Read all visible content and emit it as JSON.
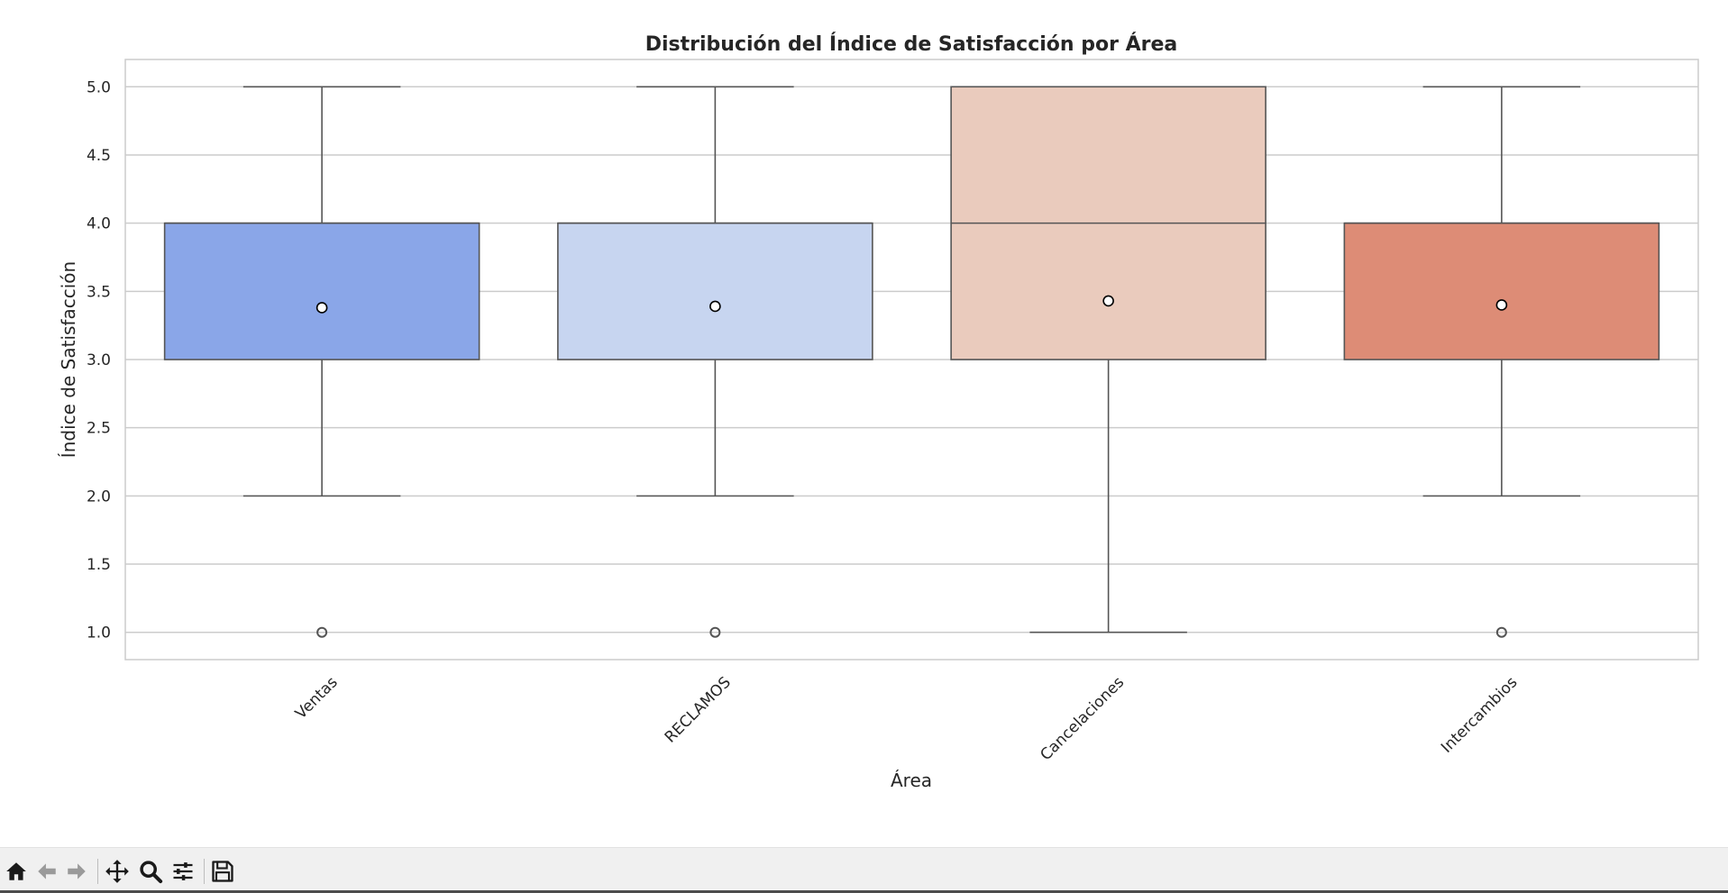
{
  "chart_data": {
    "type": "box",
    "title": "Distribución del Índice de Satisfacción por Área",
    "xlabel": "Área",
    "ylabel": "Índice de Satisfacción",
    "ylim": [
      0.8,
      5.2
    ],
    "yticks": [
      "1.0",
      "1.5",
      "2.0",
      "2.5",
      "3.0",
      "3.5",
      "4.0",
      "4.5",
      "5.0"
    ],
    "grid": "horizontal",
    "categories": [
      "Ventas",
      "RECLAMOS",
      "Cancelaciones",
      "Intercambios"
    ],
    "series": [
      {
        "category": "Ventas",
        "whisker_low": 2.0,
        "q1": 3.0,
        "median": 4.0,
        "q3": 4.0,
        "whisker_high": 5.0,
        "mean": 3.38,
        "outliers": [
          1.0
        ],
        "color": "#8aa6e8"
      },
      {
        "category": "RECLAMOS",
        "whisker_low": 2.0,
        "q1": 3.0,
        "median": 4.0,
        "q3": 4.0,
        "whisker_high": 5.0,
        "mean": 3.39,
        "outliers": [
          1.0
        ],
        "color": "#c7d5f0"
      },
      {
        "category": "Cancelaciones",
        "whisker_low": 1.0,
        "q1": 3.0,
        "median": 4.0,
        "q3": 5.0,
        "whisker_high": 5.0,
        "mean": 3.43,
        "outliers": [],
        "color": "#eacbbd"
      },
      {
        "category": "Intercambios",
        "whisker_low": 2.0,
        "q1": 3.0,
        "median": 4.0,
        "q3": 4.0,
        "whisker_high": 5.0,
        "mean": 3.4,
        "outliers": [
          1.0
        ],
        "color": "#dd8c76"
      }
    ]
  },
  "toolbar": {
    "icons": [
      "home-icon",
      "back-icon",
      "forward-icon",
      "pan-icon",
      "zoom-icon",
      "configure-icon",
      "save-icon"
    ]
  }
}
